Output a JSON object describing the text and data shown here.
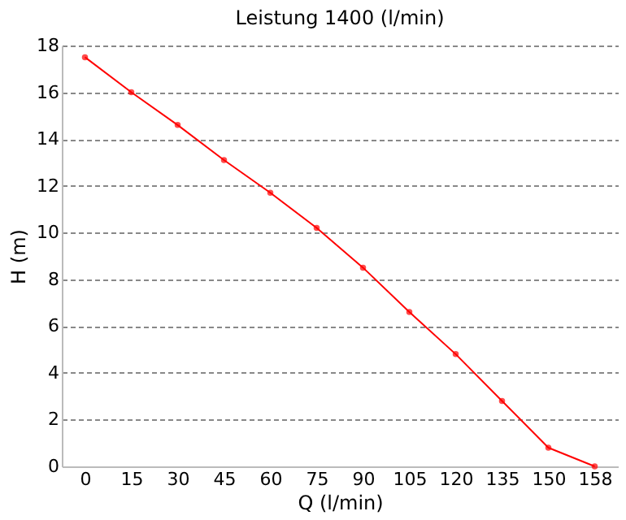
{
  "chart_data": {
    "type": "line",
    "title": "Leistung 1400 (l/min)",
    "xlabel": "Q (l/min)",
    "ylabel": "H (m)",
    "categories": [
      "0",
      "15",
      "30",
      "45",
      "60",
      "75",
      "90",
      "105",
      "120",
      "135",
      "150",
      "158"
    ],
    "series": [
      {
        "color": "#ff0000",
        "values": [
          17.5,
          16.0,
          14.6,
          13.1,
          11.7,
          10.2,
          8.5,
          6.6,
          4.8,
          2.8,
          0.8,
          0
        ]
      }
    ],
    "ylim": [
      0,
      18
    ],
    "yticks": [
      0,
      2,
      4,
      6,
      8,
      10,
      12,
      14,
      16,
      18
    ],
    "grid": "y",
    "marker": "circle",
    "line_style": "solid",
    "legend": false
  }
}
